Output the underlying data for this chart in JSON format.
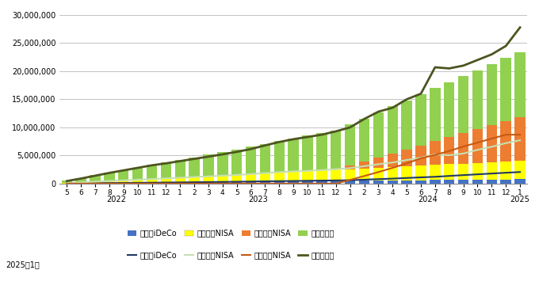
{
  "x_labels": [
    "5",
    "6",
    "7",
    "8",
    "9",
    "10",
    "11",
    "12",
    "1",
    "2",
    "3",
    "4",
    "5",
    "6",
    "7",
    "8",
    "9",
    "10",
    "11",
    "12",
    "1",
    "2",
    "3",
    "4",
    "5",
    "6",
    "7",
    "8",
    "9",
    "10",
    "11",
    "12",
    "1"
  ],
  "year_groups": [
    {
      "label": "2022",
      "start": 0,
      "end": 7
    },
    {
      "label": "2023",
      "start": 8,
      "end": 19
    },
    {
      "label": "2024",
      "start": 20,
      "end": 31
    },
    {
      "label": "2025",
      "start": 32,
      "end": 32
    }
  ],
  "inv_ideco": [
    23000,
    46000,
    69000,
    92000,
    115000,
    138000,
    161000,
    184000,
    207000,
    230000,
    253000,
    276000,
    299000,
    322000,
    345000,
    368000,
    391000,
    414000,
    437000,
    460000,
    483000,
    506000,
    529000,
    552000,
    575000,
    598000,
    621000,
    644000,
    667000,
    690000,
    713000,
    736000,
    759000
  ],
  "inv_oldnisa": [
    100000,
    200000,
    300000,
    400000,
    500000,
    600000,
    700000,
    800000,
    900000,
    1000000,
    1100000,
    1200000,
    1300000,
    1400000,
    1500000,
    1600000,
    1700000,
    1800000,
    1900000,
    2000000,
    2100000,
    2200000,
    2300000,
    2400000,
    2500000,
    2600000,
    2700000,
    2800000,
    2900000,
    3000000,
    3100000,
    3200000,
    3300000
  ],
  "inv_newnisa": [
    0,
    0,
    0,
    0,
    0,
    0,
    0,
    0,
    0,
    0,
    0,
    0,
    0,
    0,
    0,
    0,
    0,
    0,
    0,
    0,
    600000,
    1200000,
    1800000,
    2400000,
    3000000,
    3600000,
    4200000,
    4800000,
    5400000,
    6000000,
    6600000,
    7200000,
    7800000
  ],
  "inv_tokutei": [
    400000,
    750000,
    1100000,
    1450000,
    1800000,
    2100000,
    2450000,
    2800000,
    3100000,
    3450000,
    3800000,
    4100000,
    4500000,
    4850000,
    5200000,
    5600000,
    5950000,
    6300000,
    6650000,
    7000000,
    7350000,
    7700000,
    8050000,
    8400000,
    8750000,
    9100000,
    9450000,
    9800000,
    10150000,
    10500000,
    10850000,
    11200000,
    11550000
  ],
  "eval_ideco": [
    25000,
    48000,
    72000,
    97000,
    118000,
    142000,
    165000,
    192000,
    215000,
    245000,
    272000,
    302000,
    328000,
    368000,
    402000,
    438000,
    462000,
    498000,
    528000,
    558000,
    592000,
    692000,
    792000,
    882000,
    1002000,
    1108000,
    1208000,
    1358000,
    1508000,
    1648000,
    1788000,
    1928000,
    2058000
  ],
  "eval_oldnisa": [
    110000,
    220000,
    340000,
    460000,
    570000,
    690000,
    800000,
    930000,
    1050000,
    1170000,
    1290000,
    1410000,
    1540000,
    1690000,
    1870000,
    2040000,
    2170000,
    2270000,
    2400000,
    2560000,
    2750000,
    3100000,
    3450000,
    3750000,
    4200000,
    4600000,
    5200000,
    5050000,
    5350000,
    6000000,
    6550000,
    7200000,
    7700000
  ],
  "eval_newnisa": [
    0,
    0,
    0,
    0,
    0,
    0,
    0,
    0,
    0,
    0,
    0,
    0,
    0,
    0,
    0,
    0,
    0,
    0,
    0,
    0,
    650000,
    1350000,
    2050000,
    2800000,
    3600000,
    4500000,
    5100000,
    5800000,
    6600000,
    7300000,
    8000000,
    8700000,
    8700000
  ],
  "eval_tokutei": [
    450000,
    900000,
    1400000,
    1900000,
    2350000,
    2800000,
    3250000,
    3600000,
    4000000,
    4400000,
    4800000,
    5200000,
    5650000,
    6150000,
    6800000,
    7400000,
    7900000,
    8300000,
    8700000,
    9300000,
    10000000,
    11500000,
    12800000,
    13500000,
    15000000,
    16000000,
    20700000,
    20500000,
    21000000,
    22000000,
    23000000,
    24500000,
    27800000
  ],
  "bar_color_ideco": "#4472C4",
  "bar_color_oldnisa": "#FFFF00",
  "bar_color_newnisa": "#ED7D31",
  "bar_color_tokutei": "#92D050",
  "line_color_ideco": "#203864",
  "line_color_oldnisa": "#C6E0B4",
  "line_color_newnisa": "#C55A11",
  "line_color_tokutei": "#4D5520",
  "ylim": [
    0,
    30000000
  ],
  "yticks": [
    0,
    5000000,
    10000000,
    15000000,
    20000000,
    25000000,
    30000000
  ],
  "legend1": [
    "投賄額iDeCo",
    "投賄額旧NISA",
    "投賄額新NISA",
    "投賄額特定"
  ],
  "legend2": [
    "評価額iDeCo",
    "評価額旧NISA",
    "評価額新NISA",
    "評価額特定"
  ],
  "subtitle": "2025年1月"
}
